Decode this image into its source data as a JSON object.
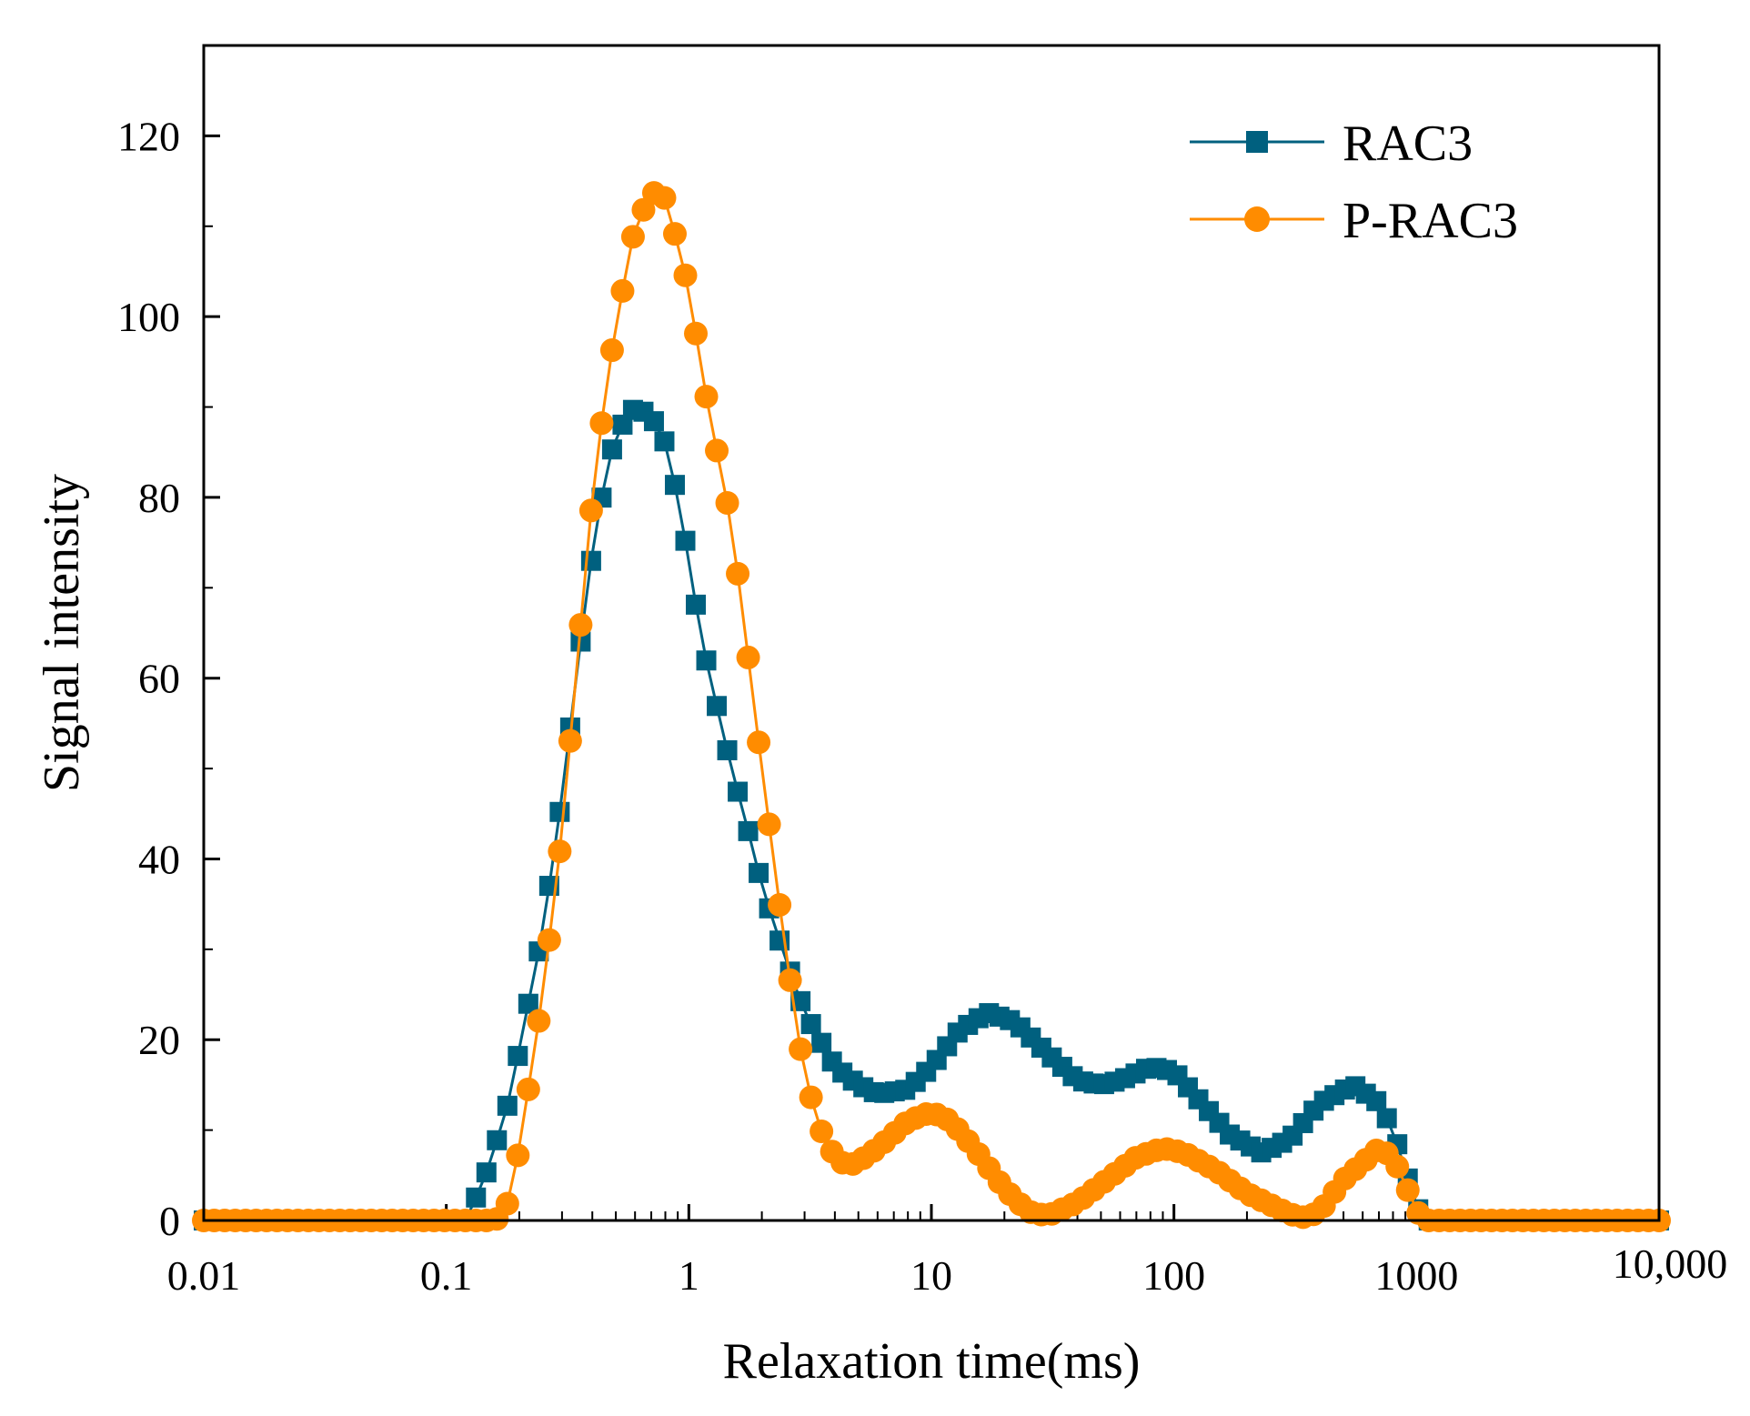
{
  "colors": {
    "rac3": "#00607f",
    "prac3": "#ff8c00",
    "axis": "#000000"
  },
  "chart_data": {
    "type": "scatter",
    "title": "",
    "xlabel": "Relaxation time(ms)",
    "ylabel": "Signal intensity",
    "xscale": "log",
    "xlim": [
      0.01,
      10000
    ],
    "ylim": [
      0,
      130
    ],
    "x_ticks": [
      {
        "value": 0.01,
        "label": "0.01"
      },
      {
        "value": 0.1,
        "label": "0.1"
      },
      {
        "value": 1,
        "label": "1"
      },
      {
        "value": 10,
        "label": "10"
      },
      {
        "value": 100,
        "label": "100"
      },
      {
        "value": 1000,
        "label": "1000"
      },
      {
        "value": 10000,
        "label": "10,000"
      }
    ],
    "y_ticks": [
      {
        "value": 0,
        "label": "0"
      },
      {
        "value": 20,
        "label": "20"
      },
      {
        "value": 40,
        "label": "40"
      },
      {
        "value": 60,
        "label": "60"
      },
      {
        "value": 80,
        "label": "80"
      },
      {
        "value": 100,
        "label": "100"
      },
      {
        "value": 120,
        "label": "120"
      }
    ],
    "legend_position": "top-right",
    "series": [
      {
        "name": "RAC3",
        "marker": "square",
        "color": "#00607f",
        "knots": [
          [
            0.01,
            0
          ],
          [
            0.12,
            0
          ],
          [
            0.13,
            2
          ],
          [
            0.15,
            6
          ],
          [
            0.18,
            13
          ],
          [
            0.2,
            19
          ],
          [
            0.25,
            32
          ],
          [
            0.3,
            47
          ],
          [
            0.35,
            62
          ],
          [
            0.4,
            74
          ],
          [
            0.45,
            82
          ],
          [
            0.5,
            87
          ],
          [
            0.6,
            90
          ],
          [
            0.7,
            89
          ],
          [
            0.8,
            86
          ],
          [
            0.9,
            80
          ],
          [
            1.0,
            73
          ],
          [
            1.1,
            66
          ],
          [
            1.2,
            61
          ],
          [
            1.5,
            50
          ],
          [
            1.8,
            42
          ],
          [
            2.0,
            37
          ],
          [
            2.5,
            29
          ],
          [
            3.0,
            23
          ],
          [
            4.0,
            17
          ],
          [
            5.0,
            15
          ],
          [
            6.0,
            14
          ],
          [
            8.0,
            14.5
          ],
          [
            10,
            17
          ],
          [
            13,
            21
          ],
          [
            17,
            23
          ],
          [
            22,
            22
          ],
          [
            30,
            18.5
          ],
          [
            40,
            15.5
          ],
          [
            50,
            15
          ],
          [
            60,
            15.5
          ],
          [
            80,
            17
          ],
          [
            100,
            16.5
          ],
          [
            130,
            13
          ],
          [
            170,
            9.5
          ],
          [
            230,
            7.5
          ],
          [
            300,
            9
          ],
          [
            400,
            13
          ],
          [
            550,
            15
          ],
          [
            700,
            13
          ],
          [
            800,
            10
          ],
          [
            900,
            5.5
          ],
          [
            1000,
            1.5
          ],
          [
            1100,
            0
          ],
          [
            10000,
            0
          ]
        ]
      },
      {
        "name": "P-RAC3",
        "marker": "circle",
        "color": "#ff8c00",
        "knots": [
          [
            0.01,
            0
          ],
          [
            0.16,
            0
          ],
          [
            0.18,
            2
          ],
          [
            0.2,
            8
          ],
          [
            0.25,
            25
          ],
          [
            0.3,
            43
          ],
          [
            0.35,
            63
          ],
          [
            0.4,
            80
          ],
          [
            0.45,
            91
          ],
          [
            0.5,
            99
          ],
          [
            0.6,
            110
          ],
          [
            0.7,
            113.5
          ],
          [
            0.75,
            114
          ],
          [
            0.8,
            113
          ],
          [
            0.9,
            108
          ],
          [
            1.0,
            103
          ],
          [
            1.1,
            96
          ],
          [
            1.2,
            90
          ],
          [
            1.5,
            77
          ],
          [
            1.8,
            60
          ],
          [
            2.0,
            50
          ],
          [
            2.5,
            30
          ],
          [
            3.0,
            16
          ],
          [
            3.5,
            10
          ],
          [
            4.0,
            7
          ],
          [
            4.5,
            6
          ],
          [
            5.0,
            6.5
          ],
          [
            6.0,
            8
          ],
          [
            8.0,
            11
          ],
          [
            10,
            12
          ],
          [
            12,
            11
          ],
          [
            15,
            8
          ],
          [
            20,
            3.5
          ],
          [
            25,
            1
          ],
          [
            30,
            0.5
          ],
          [
            40,
            2
          ],
          [
            50,
            4
          ],
          [
            70,
            7
          ],
          [
            90,
            8
          ],
          [
            110,
            7.5
          ],
          [
            150,
            5.5
          ],
          [
            200,
            3
          ],
          [
            300,
            0.7
          ],
          [
            350,
            0.3
          ],
          [
            400,
            1
          ],
          [
            500,
            4.5
          ],
          [
            700,
            8
          ],
          [
            800,
            7
          ],
          [
            900,
            4
          ],
          [
            1000,
            1
          ],
          [
            1100,
            0
          ],
          [
            10000,
            0
          ]
        ]
      }
    ]
  }
}
